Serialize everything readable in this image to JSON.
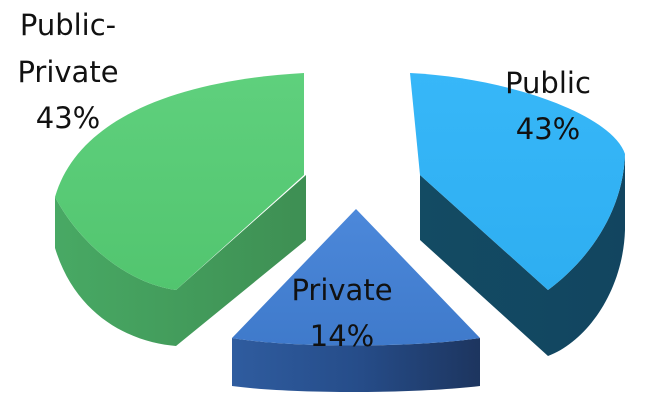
{
  "chart_data": {
    "type": "pie",
    "style": "3d-exploded",
    "title": "",
    "slices": [
      {
        "name": "Public",
        "value": 43,
        "value_label": "43%",
        "top_color": "#2EB1F5",
        "side_color": "#134B63"
      },
      {
        "name": "Private",
        "value": 14,
        "value_label": "14%",
        "top_color": "#4580D3",
        "side_color": "#2A4A86"
      },
      {
        "name": "Public-Private",
        "value": 43,
        "value_label": "43%",
        "top_color": "#56C874",
        "side_color": "#3F9555"
      }
    ],
    "legend": "none"
  }
}
